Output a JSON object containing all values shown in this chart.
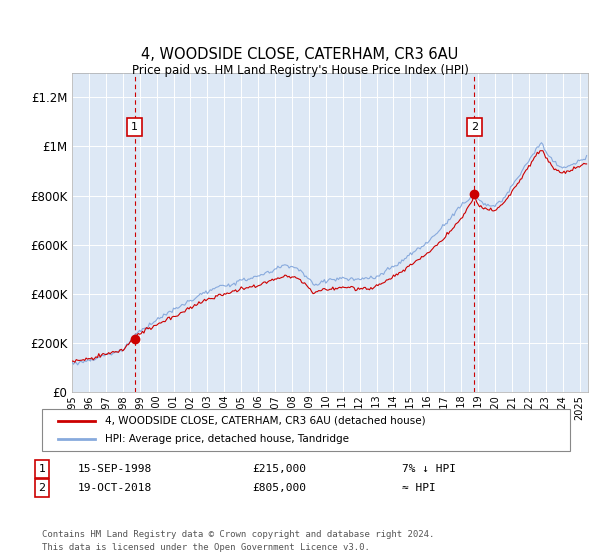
{
  "title": "4, WOODSIDE CLOSE, CATERHAM, CR3 6AU",
  "subtitle": "Price paid vs. HM Land Registry's House Price Index (HPI)",
  "footer": "Contains HM Land Registry data © Crown copyright and database right 2024.\nThis data is licensed under the Open Government Licence v3.0.",
  "legend_line1": "4, WOODSIDE CLOSE, CATERHAM, CR3 6AU (detached house)",
  "legend_line2": "HPI: Average price, detached house, Tandridge",
  "annotation1_label": "1",
  "annotation1_date": "15-SEP-1998",
  "annotation1_price": "£215,000",
  "annotation1_hpi": "7% ↓ HPI",
  "annotation2_label": "2",
  "annotation2_date": "19-OCT-2018",
  "annotation2_price": "£805,000",
  "annotation2_hpi": "≈ HPI",
  "sale1_date_num": 1998.71,
  "sale1_price": 215000,
  "sale2_date_num": 2018.79,
  "sale2_price": 805000,
  "ylim_min": 0,
  "ylim_max": 1300000,
  "xlim_min": 1995.0,
  "xlim_max": 2025.5,
  "hpi_color": "#88aadd",
  "price_color": "#cc0000",
  "sale_marker_color": "#cc0000",
  "dashed_line_color": "#cc0000",
  "background_color": "#ffffff",
  "plot_bg_color": "#dde8f5",
  "grid_color": "#ffffff",
  "yticks": [
    0,
    200000,
    400000,
    600000,
    800000,
    1000000,
    1200000
  ],
  "ytick_labels": [
    "£0",
    "£200K",
    "£400K",
    "£600K",
    "£800K",
    "£1M",
    "£1.2M"
  ],
  "xtick_years": [
    1995,
    1996,
    1997,
    1998,
    1999,
    2000,
    2001,
    2002,
    2003,
    2004,
    2005,
    2006,
    2007,
    2008,
    2009,
    2010,
    2011,
    2012,
    2013,
    2014,
    2015,
    2016,
    2017,
    2018,
    2019,
    2020,
    2021,
    2022,
    2023,
    2024,
    2025
  ]
}
